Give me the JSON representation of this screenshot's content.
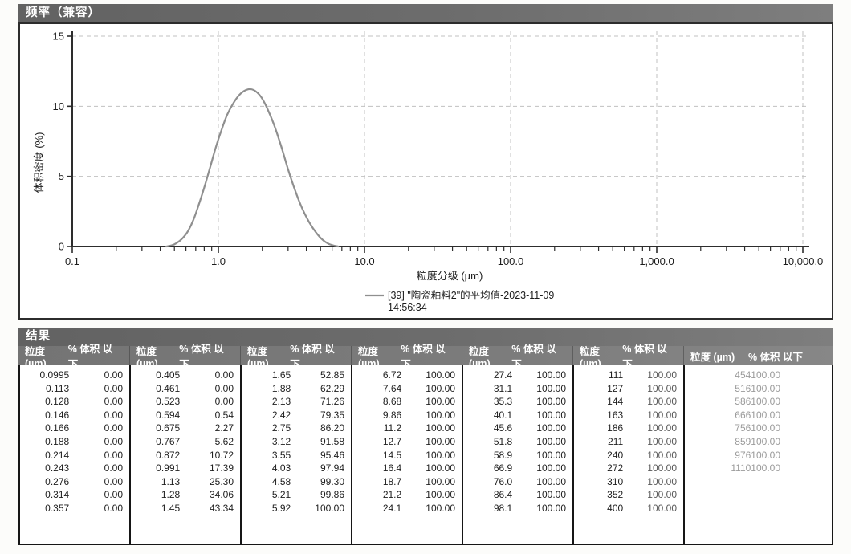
{
  "chart_panel": {
    "title": "频率（兼容）"
  },
  "chart_data": {
    "type": "line",
    "title": "频率（兼容）",
    "xlabel": "粒度分级 (µm)",
    "ylabel": "体积密度 (%)",
    "x_scale": "log",
    "xlim": [
      0.1,
      10000
    ],
    "ylim": [
      0,
      15
    ],
    "grid": true,
    "legend_position": "bottom",
    "x_ticks": [
      {
        "v": 0.1,
        "label": "0.1"
      },
      {
        "v": 1,
        "label": "1.0"
      },
      {
        "v": 10,
        "label": "10.0"
      },
      {
        "v": 100,
        "label": "100.0"
      },
      {
        "v": 1000,
        "label": "1,000.0"
      },
      {
        "v": 10000,
        "label": "10,000.0"
      }
    ],
    "y_ticks": [
      0,
      5,
      10,
      15
    ],
    "legend": {
      "line1": "[39] \"陶瓷釉料2\"的平均值-2023-11-09",
      "line2": "14:56:34"
    },
    "series": [
      {
        "name": "[39] \"陶瓷釉料2\"的平均值-2023-11-09 14:56:34",
        "color": "#8f8f8f",
        "points": [
          [
            0.44,
            0
          ],
          [
            0.48,
            0.08
          ],
          [
            0.52,
            0.25
          ],
          [
            0.57,
            0.6
          ],
          [
            0.62,
            1.1
          ],
          [
            0.675,
            1.9
          ],
          [
            0.73,
            2.9
          ],
          [
            0.8,
            4.2
          ],
          [
            0.87,
            5.5
          ],
          [
            0.95,
            6.9
          ],
          [
            1.05,
            8.3
          ],
          [
            1.15,
            9.4
          ],
          [
            1.28,
            10.3
          ],
          [
            1.42,
            10.9
          ],
          [
            1.58,
            11.2
          ],
          [
            1.75,
            11.15
          ],
          [
            1.95,
            10.7
          ],
          [
            2.15,
            9.9
          ],
          [
            2.4,
            8.7
          ],
          [
            2.7,
            7.1
          ],
          [
            3.0,
            5.5
          ],
          [
            3.35,
            4.0
          ],
          [
            3.75,
            2.7
          ],
          [
            4.2,
            1.7
          ],
          [
            4.7,
            0.95
          ],
          [
            5.2,
            0.45
          ],
          [
            5.7,
            0.18
          ],
          [
            6.2,
            0.06
          ],
          [
            6.6,
            0
          ]
        ]
      }
    ],
    "colors": {
      "axis": "#2d2d2d",
      "grid": "#c0c0c0",
      "text": "#1c1c1c"
    }
  },
  "results": {
    "title": "结果",
    "col_headers": {
      "size": "粒度 (µm)",
      "pct": "% 体积 以下"
    },
    "groups": [
      {
        "fade": 0,
        "rows": [
          [
            "0.0995",
            "0.00"
          ],
          [
            "0.113",
            "0.00"
          ],
          [
            "0.128",
            "0.00"
          ],
          [
            "0.146",
            "0.00"
          ],
          [
            "0.166",
            "0.00"
          ],
          [
            "0.188",
            "0.00"
          ],
          [
            "0.214",
            "0.00"
          ],
          [
            "0.243",
            "0.00"
          ],
          [
            "0.276",
            "0.00"
          ],
          [
            "0.314",
            "0.00"
          ],
          [
            "0.357",
            "0.00"
          ]
        ]
      },
      {
        "fade": 0,
        "rows": [
          [
            "0.405",
            "0.00"
          ],
          [
            "0.461",
            "0.00"
          ],
          [
            "0.523",
            "0.00"
          ],
          [
            "0.594",
            "0.54"
          ],
          [
            "0.675",
            "2.27"
          ],
          [
            "0.767",
            "5.62"
          ],
          [
            "0.872",
            "10.72"
          ],
          [
            "0.991",
            "17.39"
          ],
          [
            "1.13",
            "25.30"
          ],
          [
            "1.28",
            "34.06"
          ],
          [
            "1.45",
            "43.34"
          ]
        ]
      },
      {
        "fade": 0,
        "rows": [
          [
            "1.65",
            "52.85"
          ],
          [
            "1.88",
            "62.29"
          ],
          [
            "2.13",
            "71.26"
          ],
          [
            "2.42",
            "79.35"
          ],
          [
            "2.75",
            "86.20"
          ],
          [
            "3.12",
            "91.58"
          ],
          [
            "3.55",
            "95.46"
          ],
          [
            "4.03",
            "97.94"
          ],
          [
            "4.58",
            "99.30"
          ],
          [
            "5.21",
            "99.86"
          ],
          [
            "5.92",
            "100.00"
          ]
        ]
      },
      {
        "fade": 0,
        "rows": [
          [
            "6.72",
            "100.00"
          ],
          [
            "7.64",
            "100.00"
          ],
          [
            "8.68",
            "100.00"
          ],
          [
            "9.86",
            "100.00"
          ],
          [
            "11.2",
            "100.00"
          ],
          [
            "12.7",
            "100.00"
          ],
          [
            "14.5",
            "100.00"
          ],
          [
            "16.4",
            "100.00"
          ],
          [
            "18.7",
            "100.00"
          ],
          [
            "21.2",
            "100.00"
          ],
          [
            "24.1",
            "100.00"
          ]
        ]
      },
      {
        "fade": 0,
        "rows": [
          [
            "27.4",
            "100.00"
          ],
          [
            "31.1",
            "100.00"
          ],
          [
            "35.3",
            "100.00"
          ],
          [
            "40.1",
            "100.00"
          ],
          [
            "45.6",
            "100.00"
          ],
          [
            "51.8",
            "100.00"
          ],
          [
            "58.9",
            "100.00"
          ],
          [
            "66.9",
            "100.00"
          ],
          [
            "76.0",
            "100.00"
          ],
          [
            "86.4",
            "100.00"
          ],
          [
            "98.1",
            "100.00"
          ]
        ]
      },
      {
        "fade": 1,
        "rows": [
          [
            "111",
            "100.00"
          ],
          [
            "127",
            "100.00"
          ],
          [
            "144",
            "100.00"
          ],
          [
            "163",
            "100.00"
          ],
          [
            "186",
            "100.00"
          ],
          [
            "211",
            "100.00"
          ],
          [
            "240",
            "100.00"
          ],
          [
            "272",
            "100.00"
          ],
          [
            "310",
            "100.00"
          ],
          [
            "352",
            "100.00"
          ],
          [
            "400",
            "100.00"
          ]
        ]
      },
      {
        "fade": 2,
        "rows": [
          [
            "454",
            "100.00"
          ],
          [
            "516",
            "100.00"
          ],
          [
            "586",
            "100.00"
          ],
          [
            "666",
            "100.00"
          ],
          [
            "756",
            "100.00"
          ],
          [
            "859",
            "100.00"
          ],
          [
            "976",
            "100.00"
          ],
          [
            "1110",
            "100.00"
          ]
        ]
      }
    ]
  }
}
